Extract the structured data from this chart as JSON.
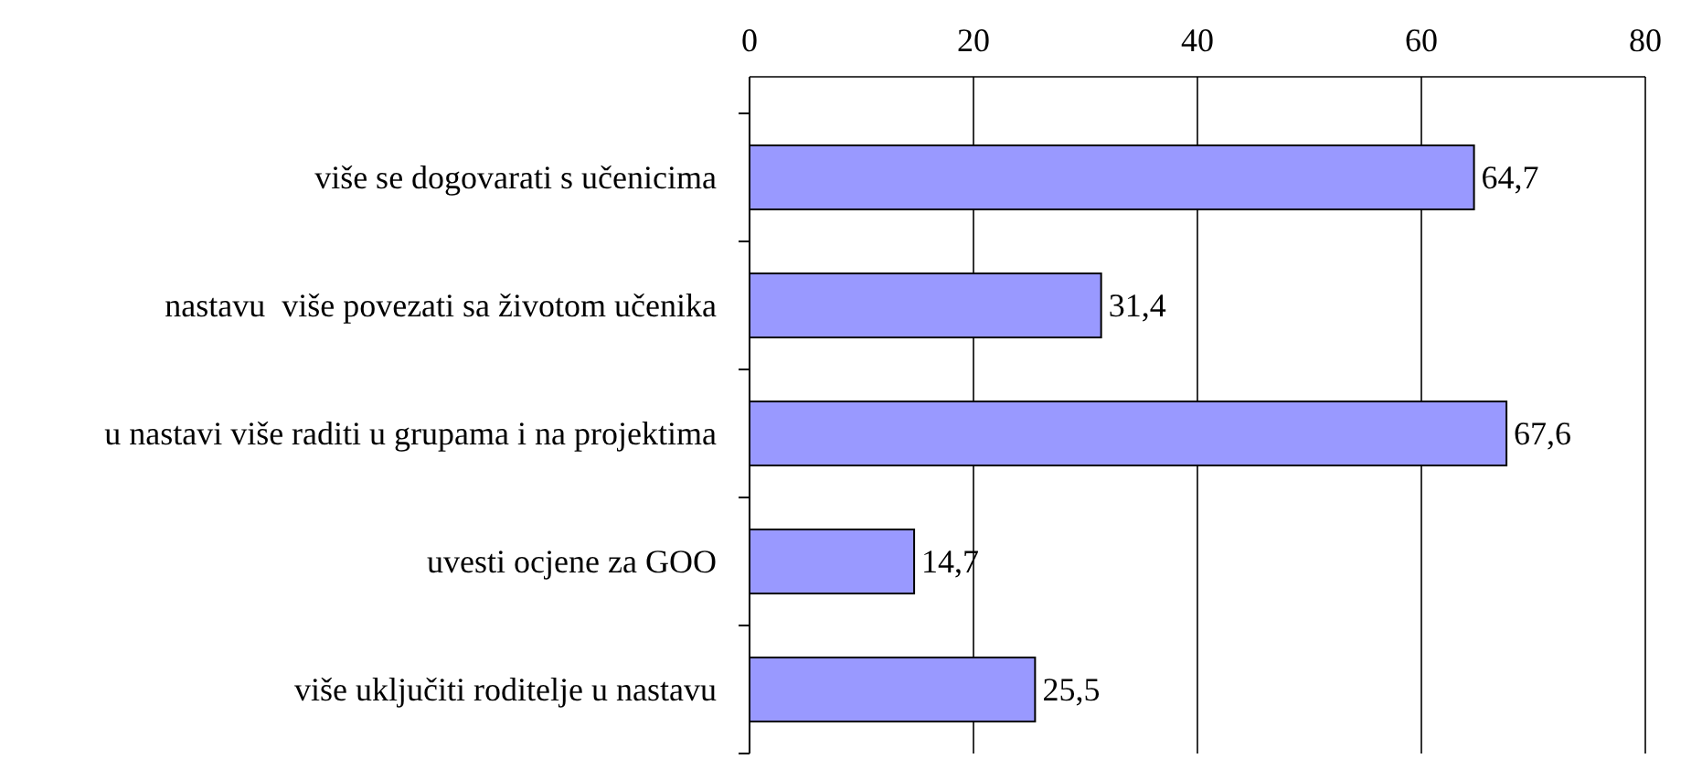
{
  "chart_data": {
    "type": "bar",
    "orientation": "horizontal",
    "categories": [
      "više se dogovarati s učenicima",
      "nastavu  više povezati sa životom učenika",
      "u nastavi više raditi u grupama i na projektima",
      "uvesti ocjene za GOO",
      "više uključiti roditelje u nastavu"
    ],
    "values": [
      64.7,
      31.4,
      67.6,
      14.7,
      25.5
    ],
    "value_labels": [
      "64,7",
      "31,4",
      "67,6",
      "14,7",
      "25,5"
    ],
    "color": "#9999ff",
    "xlim": [
      0,
      80
    ],
    "xticks": [
      0,
      20,
      40,
      60,
      80
    ],
    "grid": "x"
  }
}
